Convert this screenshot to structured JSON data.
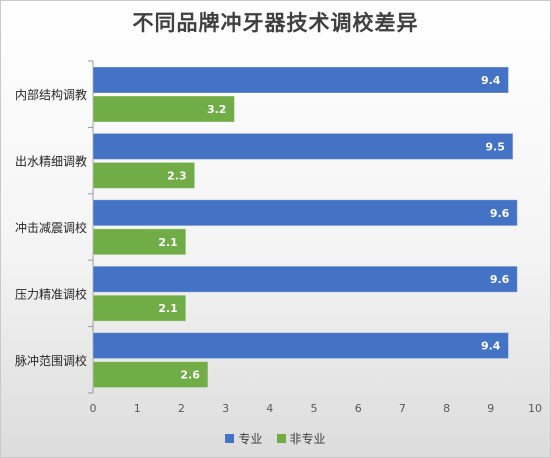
{
  "chart_data": {
    "type": "bar",
    "orientation": "horizontal",
    "title": "不同品牌冲牙器技术调校差异",
    "categories": [
      "内部结构调教",
      "出水精细调教",
      "冲击减震调校",
      "压力精准调校",
      "脉冲范围调校"
    ],
    "series": [
      {
        "name": "专业",
        "color": "#4472c4",
        "values": [
          9.4,
          9.5,
          9.6,
          9.6,
          9.4
        ]
      },
      {
        "name": "非专业",
        "color": "#70ad47",
        "values": [
          3.2,
          2.3,
          2.1,
          2.1,
          2.6
        ]
      }
    ],
    "xlim": [
      0,
      10
    ],
    "xticks": [
      "0",
      "1",
      "2",
      "3",
      "4",
      "5",
      "6",
      "7",
      "8",
      "9",
      "10"
    ],
    "data_labels": true,
    "legend_position": "bottom",
    "grid": false
  }
}
